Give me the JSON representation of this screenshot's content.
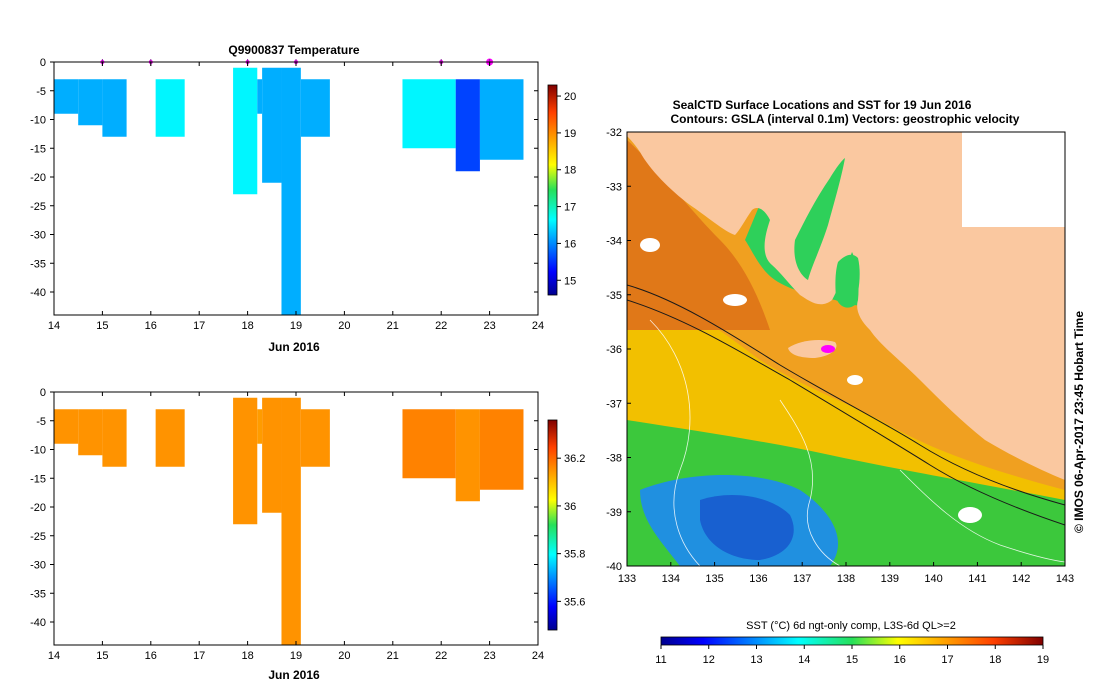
{
  "chart_data": [
    {
      "type": "heatmap",
      "title": "Q9900837  Temperature",
      "xlabel": "Jun 2016",
      "ylabel": "",
      "xlim": [
        14,
        24
      ],
      "ylim": [
        -44,
        0
      ],
      "x_ticks": [
        14,
        15,
        16,
        17,
        18,
        19,
        20,
        21,
        22,
        23,
        24
      ],
      "y_ticks": [
        0,
        -5,
        -10,
        -15,
        -20,
        -25,
        -30,
        -35,
        -40
      ],
      "colorbar": {
        "min": 14.6,
        "max": 20.3,
        "ticks": [
          15,
          16,
          17,
          18,
          19,
          20
        ]
      },
      "profile_markers": [
        15,
        16,
        18,
        19,
        22,
        23
      ],
      "highlighted_marker": 23,
      "profiles": [
        {
          "x0": 14.0,
          "x1": 14.5,
          "top": -3,
          "bottom": -9,
          "value": 16.2
        },
        {
          "x0": 14.5,
          "x1": 15.0,
          "top": -3,
          "bottom": -11,
          "value": 16.2
        },
        {
          "x0": 15.0,
          "x1": 15.5,
          "top": -3,
          "bottom": -13,
          "value": 16.2
        },
        {
          "x0": 16.1,
          "x1": 16.7,
          "top": -3,
          "bottom": -13,
          "value": 16.6
        },
        {
          "x0": 17.7,
          "x1": 18.2,
          "top": -1,
          "bottom": -23,
          "value": 16.6
        },
        {
          "x0": 18.2,
          "x1": 18.3,
          "top": -3,
          "bottom": -9,
          "value": 16.2
        },
        {
          "x0": 18.3,
          "x1": 18.7,
          "top": -1,
          "bottom": -21,
          "value": 16.2
        },
        {
          "x0": 18.7,
          "x1": 19.1,
          "top": -1,
          "bottom": -44,
          "value": 16.2
        },
        {
          "x0": 19.1,
          "x1": 19.7,
          "top": -3,
          "bottom": -13,
          "value": 16.2
        },
        {
          "x0": 21.2,
          "x1": 22.3,
          "top": -3,
          "bottom": -15,
          "value": 16.6
        },
        {
          "x0": 22.3,
          "x1": 22.8,
          "top": -3,
          "bottom": -19,
          "value": 15.6
        },
        {
          "x0": 22.8,
          "x1": 23.7,
          "top": -3,
          "bottom": -17,
          "value": 16.2
        }
      ]
    },
    {
      "type": "heatmap",
      "title": "",
      "xlabel": "Jun 2016",
      "ylabel": "",
      "xlim": [
        14,
        24
      ],
      "ylim": [
        -44,
        0
      ],
      "x_ticks": [
        14,
        15,
        16,
        17,
        18,
        19,
        20,
        21,
        22,
        23,
        24
      ],
      "y_ticks": [
        0,
        -5,
        -10,
        -15,
        -20,
        -25,
        -30,
        -35,
        -40
      ],
      "colorbar": {
        "min": 35.48,
        "max": 36.36,
        "ticks": [
          35.6,
          35.8,
          36,
          36.2
        ]
      },
      "profiles": [
        {
          "x0": 14.0,
          "x1": 14.5,
          "top": -3,
          "bottom": -9,
          "value": 36.15
        },
        {
          "x0": 14.5,
          "x1": 15.0,
          "top": -3,
          "bottom": -11,
          "value": 36.15
        },
        {
          "x0": 15.0,
          "x1": 15.5,
          "top": -3,
          "bottom": -13,
          "value": 36.15
        },
        {
          "x0": 16.1,
          "x1": 16.7,
          "top": -3,
          "bottom": -13,
          "value": 36.15
        },
        {
          "x0": 17.7,
          "x1": 18.2,
          "top": -1,
          "bottom": -23,
          "value": 36.15
        },
        {
          "x0": 18.2,
          "x1": 18.3,
          "top": -3,
          "bottom": -9,
          "value": 36.14
        },
        {
          "x0": 18.3,
          "x1": 18.7,
          "top": -1,
          "bottom": -21,
          "value": 36.15
        },
        {
          "x0": 18.7,
          "x1": 19.1,
          "top": -1,
          "bottom": -44,
          "value": 36.15
        },
        {
          "x0": 19.1,
          "x1": 19.7,
          "top": -3,
          "bottom": -13,
          "value": 36.15
        },
        {
          "x0": 21.2,
          "x1": 22.3,
          "top": -3,
          "bottom": -15,
          "value": 36.17
        },
        {
          "x0": 22.3,
          "x1": 22.8,
          "top": -3,
          "bottom": -19,
          "value": 36.15
        },
        {
          "x0": 22.8,
          "x1": 23.7,
          "top": -3,
          "bottom": -17,
          "value": 36.17
        }
      ]
    },
    {
      "type": "heatmap",
      "title": "SealCTD Surface Locations and SST for 19 Jun 2016",
      "subtitle": "Contours: GSLA (interval 0.1m) Vectors: geostrophic velocity",
      "xlabel": "",
      "ylabel": "",
      "xlim": [
        133,
        143
      ],
      "ylim": [
        -40,
        -32
      ],
      "x_ticks": [
        133,
        134,
        135,
        136,
        137,
        138,
        139,
        140,
        141,
        142,
        143
      ],
      "y_ticks": [
        -32,
        -33,
        -34,
        -35,
        -36,
        -37,
        -38,
        -39,
        -40
      ],
      "side_text": "© IMOS 06-Apr-2017 23:45 Hobart Time",
      "colorbar": {
        "label": "SST (°C) 6d ngt-only comp, L3S-6d QL>=2",
        "min": 11,
        "max": 19,
        "ticks": [
          11,
          12,
          13,
          14,
          15,
          16,
          17,
          18,
          19
        ]
      },
      "sea_location": {
        "lon": 137.6,
        "lat": -36.0
      }
    }
  ]
}
